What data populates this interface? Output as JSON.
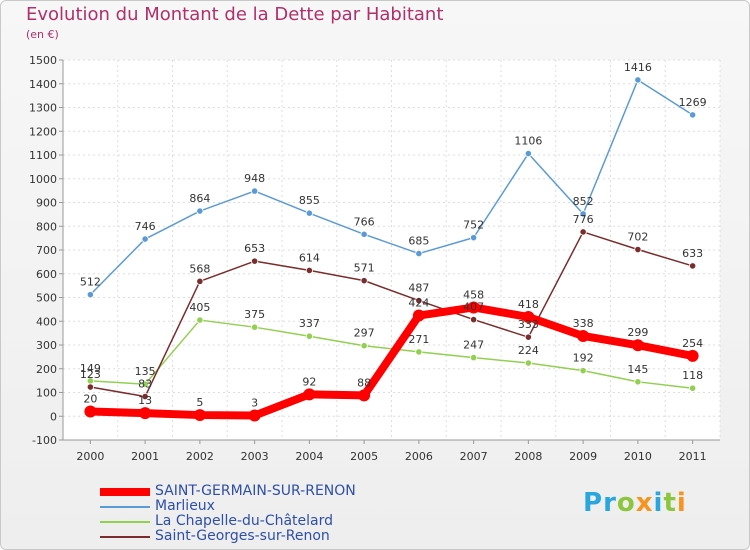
{
  "title": "Evolution du Montant de la Dette par Habitant",
  "unit_label": "(en €)",
  "logo": {
    "text": "Proxiti",
    "letters": [
      {
        "ch": "P",
        "color": "#2aa6de"
      },
      {
        "ch": "r",
        "color": "#2aa6de"
      },
      {
        "ch": "o",
        "color": "#8cc63f"
      },
      {
        "ch": "x",
        "color": "#f7941d"
      },
      {
        "ch": "i",
        "color": "#2aa6de"
      },
      {
        "ch": "t",
        "color": "#8cc63f"
      },
      {
        "ch": "i",
        "color": "#f7941d"
      }
    ]
  },
  "chart_data": {
    "type": "line",
    "title": "Evolution du Montant de la Dette par Habitant",
    "ylabel": "(en €)",
    "xlabel": "",
    "x": [
      "2000",
      "2001",
      "2002",
      "2003",
      "2004",
      "2005",
      "2006",
      "2007",
      "2008",
      "2009",
      "2010",
      "2011"
    ],
    "ylim": [
      -100,
      1500
    ],
    "yticks": [
      -100,
      0,
      100,
      200,
      300,
      400,
      500,
      600,
      700,
      800,
      900,
      1000,
      1100,
      1200,
      1300,
      1400,
      1500
    ],
    "grid": true,
    "legend_position": "bottom-left",
    "series": [
      {
        "name": "SAINT-GERMAIN-SUR-RENON",
        "color": "#ff0000",
        "emphasis": true,
        "values": [
          20,
          13,
          5,
          3,
          92,
          88,
          424,
          458,
          418,
          338,
          299,
          254
        ],
        "labels": [
          "20",
          "13",
          "5",
          "3",
          "92",
          "88",
          "424",
          "458",
          "418",
          "338",
          "299",
          "254"
        ]
      },
      {
        "name": "Marlieux",
        "color": "#5b9bd5",
        "emphasis": false,
        "values": [
          512,
          746,
          864,
          948,
          855,
          766,
          685,
          752,
          1106,
          852,
          1416,
          1269
        ],
        "labels": [
          "512",
          "746",
          "864",
          "948",
          "855",
          "766",
          "685",
          "752",
          "1106",
          "852",
          "1416",
          "1269"
        ]
      },
      {
        "name": "La Chapelle-du-Châtelard",
        "color": "#92d050",
        "emphasis": false,
        "values": [
          149,
          135,
          405,
          375,
          337,
          297,
          271,
          247,
          224,
          192,
          145,
          118
        ],
        "labels": [
          "149",
          "135",
          "405",
          "375",
          "337",
          "297",
          "271",
          "247",
          "224",
          "192",
          "145",
          "118"
        ]
      },
      {
        "name": "Saint-Georges-sur-Renon",
        "color": "#7b2c2c",
        "emphasis": false,
        "values": [
          123,
          83,
          568,
          653,
          614,
          571,
          487,
          407,
          333,
          776,
          702,
          633
        ],
        "labels": [
          "123",
          "83",
          "568",
          "653",
          "614",
          "571",
          "487",
          "407",
          "333",
          "776",
          "702",
          "633"
        ]
      }
    ]
  }
}
